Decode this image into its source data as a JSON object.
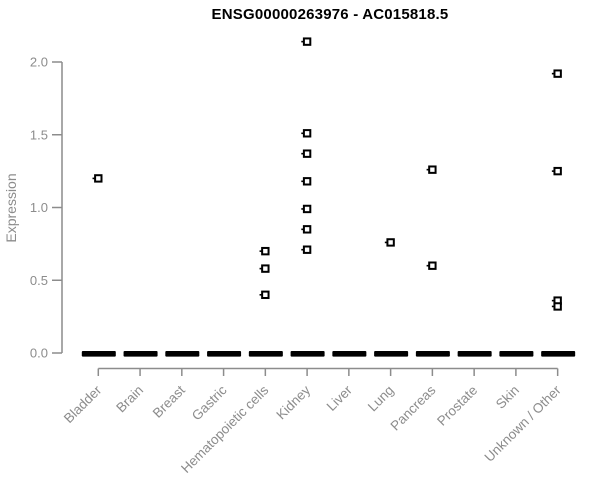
{
  "chart_data": {
    "type": "scatter",
    "title": "ENSG00000263976 - AC015818.5",
    "ylabel": "Expression",
    "xlabel": "",
    "ylim": [
      0.0,
      2.2
    ],
    "yticks": [
      0.0,
      0.5,
      1.0,
      1.5,
      2.0
    ],
    "ytick_labels": [
      "0.0",
      "0.5",
      "1.0",
      "1.5",
      "2.0"
    ],
    "categories": [
      "Bladder",
      "Brain",
      "Breast",
      "Gastric",
      "Hematopoietic cells",
      "Kidney",
      "Liver",
      "Lung",
      "Pancreas",
      "Prostate",
      "Skin",
      "Unknown / Other"
    ],
    "marker": "open-square",
    "grid": false,
    "legend": "none",
    "zero_cluster_note": "every category has a dense cluster of samples at expression 0, drawn as a thick black dash",
    "series": [
      {
        "category": "Bladder",
        "values": [
          1.2
        ],
        "zero_cluster": true
      },
      {
        "category": "Brain",
        "values": [],
        "zero_cluster": true
      },
      {
        "category": "Breast",
        "values": [],
        "zero_cluster": true
      },
      {
        "category": "Gastric",
        "values": [],
        "zero_cluster": true
      },
      {
        "category": "Hematopoietic cells",
        "values": [
          0.7,
          0.58,
          0.4
        ],
        "zero_cluster": true
      },
      {
        "category": "Kidney",
        "values": [
          2.14,
          1.51,
          1.37,
          1.18,
          0.99,
          0.85,
          0.71
        ],
        "zero_cluster": true
      },
      {
        "category": "Liver",
        "values": [],
        "zero_cluster": true
      },
      {
        "category": "Lung",
        "values": [
          0.76
        ],
        "zero_cluster": true
      },
      {
        "category": "Pancreas",
        "values": [
          1.26,
          0.6
        ],
        "zero_cluster": true
      },
      {
        "category": "Prostate",
        "values": [],
        "zero_cluster": true
      },
      {
        "category": "Skin",
        "values": [],
        "zero_cluster": true
      },
      {
        "category": "Unknown / Other",
        "values": [
          1.92,
          1.25,
          0.36,
          0.32
        ],
        "zero_cluster": true
      }
    ],
    "colors": {
      "points": "#000000",
      "zero_dash": "#000000",
      "axis": "#8c8c8c",
      "tick_labels": "#8c8c8c",
      "category_labels": "#8c8c8c",
      "ylabel": "#8c8c8c",
      "title": "#000000",
      "background": "#ffffff"
    }
  }
}
